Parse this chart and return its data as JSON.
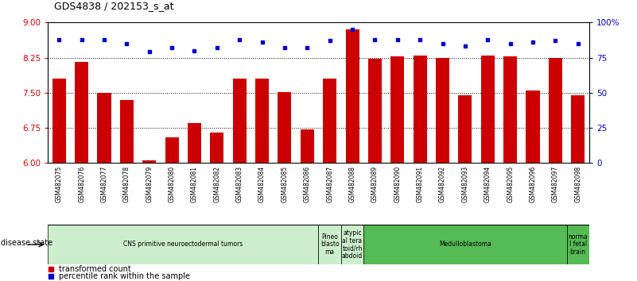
{
  "title": "GDS4838 / 202153_s_at",
  "samples": [
    "GSM482075",
    "GSM482076",
    "GSM482077",
    "GSM482078",
    "GSM482079",
    "GSM482080",
    "GSM482081",
    "GSM482082",
    "GSM482083",
    "GSM482084",
    "GSM482085",
    "GSM482086",
    "GSM482087",
    "GSM482088",
    "GSM482089",
    "GSM482090",
    "GSM482091",
    "GSM482092",
    "GSM482093",
    "GSM482094",
    "GSM482095",
    "GSM482096",
    "GSM482097",
    "GSM482098"
  ],
  "bar_values": [
    7.8,
    8.15,
    7.5,
    7.35,
    6.05,
    6.55,
    6.85,
    6.65,
    7.8,
    7.8,
    7.52,
    6.72,
    7.8,
    8.85,
    8.22,
    8.28,
    8.3,
    8.25,
    7.45,
    8.3,
    8.28,
    7.55,
    8.25,
    7.45
  ],
  "percentile_values": [
    88,
    88,
    88,
    85,
    79,
    82,
    80,
    82,
    88,
    86,
    82,
    82,
    87,
    95,
    88,
    88,
    88,
    85,
    83,
    88,
    85,
    86,
    87,
    85
  ],
  "bar_color": "#CC0000",
  "percentile_color": "#0000CC",
  "ylim_left": [
    6.0,
    9.0
  ],
  "ylim_right": [
    0,
    100
  ],
  "yticks_left": [
    6.0,
    6.75,
    7.5,
    8.25,
    9.0
  ],
  "yticks_right": [
    0,
    25,
    50,
    75,
    100
  ],
  "hlines": [
    6.75,
    7.5,
    8.25
  ],
  "group_labels": [
    {
      "label": "CNS primitive neuroectodermal tumors",
      "start": 0,
      "end": 12,
      "color": "#CCEECC"
    },
    {
      "label": "Pineo\nblasto\nma",
      "start": 12,
      "end": 13,
      "color": "#CCEECC"
    },
    {
      "label": "atypic\nal tera\ntoid/rh\nabdoid",
      "start": 13,
      "end": 14,
      "color": "#CCEECC"
    },
    {
      "label": "Medulloblastoma",
      "start": 14,
      "end": 23,
      "color": "#55BB55"
    },
    {
      "label": "norma\nl fetal\nbrain",
      "start": 23,
      "end": 24,
      "color": "#55BB55"
    }
  ],
  "legend_items": [
    {
      "label": "transformed count",
      "color": "#CC0000"
    },
    {
      "label": "percentile rank within the sample",
      "color": "#0000CC"
    }
  ],
  "tick_label_color_left": "#CC0000",
  "tick_label_color_right": "#0000CC",
  "xtick_bg_color": "#C8C8C8"
}
